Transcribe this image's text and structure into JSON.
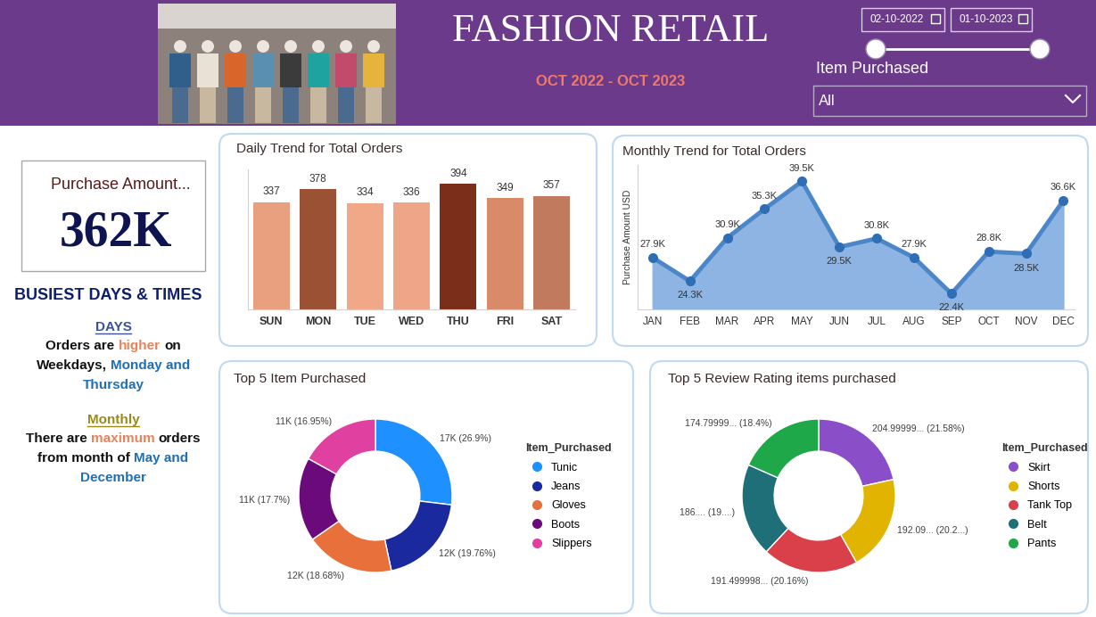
{
  "header": {
    "title": "FASHION RETAIL",
    "subtitle": "OCT 2022 - OCT 2023",
    "date_from": "02-10-2022",
    "date_to": "01-10-2023",
    "filter_label": "Item Purchased",
    "filter_value": "All"
  },
  "kpi": {
    "title": "Purchase Amount...",
    "value": "362K"
  },
  "insights": {
    "title": "BUSIEST DAYS & TIMES",
    "sections": [
      {
        "heading": "DAYS",
        "color": "#3C4FA0",
        "lines": [
          [
            {
              "text": "Orders are",
              "color": "#111111"
            },
            {
              "text": "higher",
              "color": "#E8825A"
            },
            {
              "text": "on",
              "color": "#111111"
            }
          ],
          [
            {
              "text": "Weekdays,",
              "color": "#111111"
            },
            {
              "text": "Monday and",
              "color": "#1F6FB5"
            }
          ],
          [
            {
              "text": "Thursday",
              "color": "#1F6FB5"
            }
          ]
        ]
      },
      {
        "heading": "Monthly",
        "color": "#9C8A16",
        "lines": [
          [
            {
              "text": "There are",
              "color": "#111111"
            },
            {
              "text": "maximum",
              "color": "#E8825A"
            },
            {
              "text": "orders",
              "color": "#111111"
            }
          ],
          [
            {
              "text": "from month of",
              "color": "#111111"
            },
            {
              "text": "May and",
              "color": "#1F6FB5"
            }
          ],
          [
            {
              "text": "December",
              "color": "#1F6FB5"
            }
          ]
        ]
      }
    ]
  },
  "chart_data": [
    {
      "type": "bar",
      "title": "Daily Trend for Total Orders",
      "categories": [
        "SUN",
        "MON",
        "TUE",
        "WED",
        "THU",
        "FRI",
        "SAT"
      ],
      "values": [
        337,
        378,
        334,
        336,
        394,
        349,
        357
      ],
      "colors": [
        "#E8A07E",
        "#9B5134",
        "#F0A888",
        "#EFA587",
        "#7B2E1A",
        "#D98A68",
        "#C27A5E"
      ],
      "ylim": [
        0,
        440
      ],
      "tick_labels": "x",
      "data_labels": true
    },
    {
      "type": "area",
      "title": "Monthly Trend for Total Orders",
      "y_label": "Purchase Amount USD",
      "categories": [
        "JAN",
        "FEB",
        "MAR",
        "APR",
        "MAY",
        "JUN",
        "JUL",
        "AUG",
        "SEP",
        "OCT",
        "NOV",
        "DEC"
      ],
      "values": [
        27900,
        24300,
        30900,
        35300,
        39500,
        29500,
        30800,
        27900,
        22400,
        28800,
        28500,
        36600
      ],
      "value_labels": [
        "27.9K",
        "24.3K",
        "30.9K",
        "35.3K",
        "39.5K",
        "29.5K",
        "30.8K",
        "27.9K",
        "22.4K",
        "28.8K",
        "28.5K",
        "36.6K"
      ],
      "color": "#4A86C8",
      "marker": "o",
      "ylim": [
        20000,
        42000
      ],
      "tick_labels": "x",
      "data_labels": true
    },
    {
      "type": "pie",
      "title": "Top 5 Item Purchased",
      "legend_title": "Item_Purchased",
      "categories": [
        "Tunic",
        "Jeans",
        "Gloves",
        "Boots",
        "Slippers"
      ],
      "values": [
        26.9,
        19.76,
        18.68,
        17.7,
        16.95
      ],
      "value_labels": [
        "17K (26.9%)",
        "12K (19.76%)",
        "12K (18.68%)",
        "11K (17.7%)",
        "11K (16.95%)"
      ],
      "colors": [
        "#1E90FF",
        "#1A2A9E",
        "#E8703A",
        "#6B0A7A",
        "#E040A0"
      ],
      "legend": "right",
      "data_labels": true
    },
    {
      "type": "pie",
      "title": "Top 5 Review Rating items purchased",
      "legend_title": "Item_Purchased",
      "categories": [
        "Skirt",
        "Shorts",
        "Tank Top",
        "Belt",
        "Pants"
      ],
      "values": [
        21.58,
        20.22,
        20.16,
        19.63,
        18.4
      ],
      "value_labels": [
        "204.99999... (21.58%)",
        "192.09... (20.2...)",
        "191.499998... (20.16%)",
        "186.... (19....)",
        "174.79999... (18.4%)"
      ],
      "colors": [
        "#8A4FC8",
        "#E0B400",
        "#D9404A",
        "#1E6F78",
        "#1EA84A"
      ],
      "legend": "right",
      "data_labels": true
    }
  ]
}
